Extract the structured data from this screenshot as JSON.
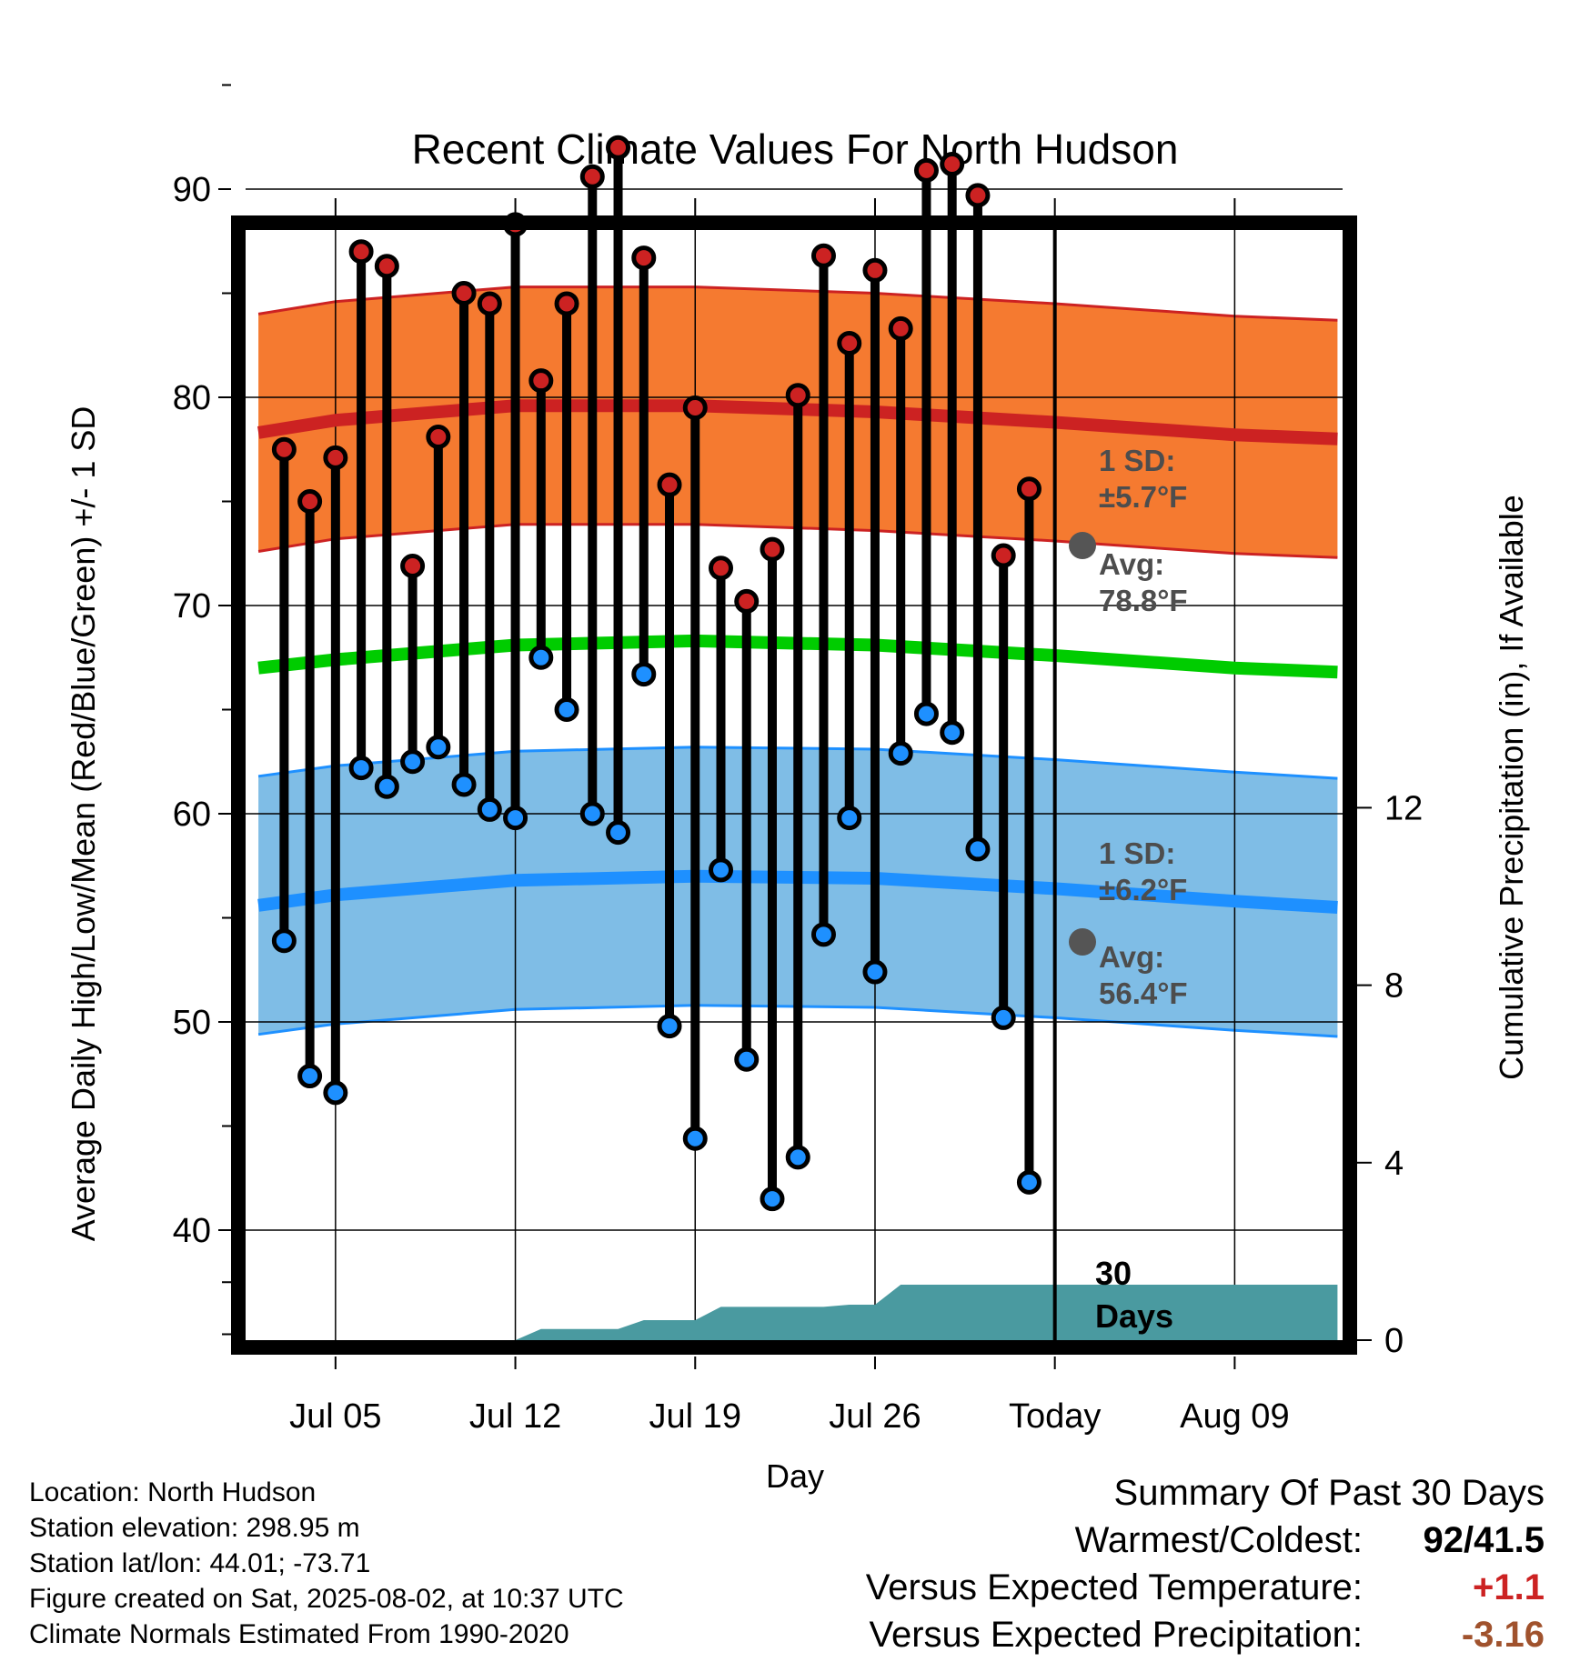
{
  "chart_data": {
    "type": "line",
    "title": "Recent Climate Values For North Hudson",
    "xlabel": "Day",
    "ylabel": "Average Daily High/Low/Mean (Red/Blue/Green) +/- 1 SD",
    "y2label": "Cumulative Precipitation (in), If Available",
    "ylim": [
      34,
      96
    ],
    "y2lim": [
      0,
      28
    ],
    "yticks": [
      "40",
      "50",
      "60",
      "70",
      "80",
      "90"
    ],
    "y2ticks": [
      "0",
      "4",
      "8",
      "12"
    ],
    "xtick_labels": [
      "Jul 05",
      "Jul 12",
      "Jul 19",
      "Jul 26",
      "Today",
      "Aug 09"
    ],
    "x_dates": [
      "Jul 03",
      "Jul 04",
      "Jul 05",
      "Jul 06",
      "Jul 07",
      "Jul 08",
      "Jul 09",
      "Jul 10",
      "Jul 11",
      "Jul 12",
      "Jul 13",
      "Jul 14",
      "Jul 15",
      "Jul 16",
      "Jul 17",
      "Jul 18",
      "Jul 19",
      "Jul 20",
      "Jul 21",
      "Jul 22",
      "Jul 23",
      "Jul 24",
      "Jul 25",
      "Jul 26",
      "Jul 27",
      "Jul 28",
      "Jul 29",
      "Jul 30",
      "Jul 31",
      "Aug 01"
    ],
    "series": [
      {
        "name": "High",
        "color": "#cc2222",
        "values": [
          77.5,
          75.0,
          77.1,
          87.0,
          86.3,
          71.9,
          78.1,
          85.0,
          84.5,
          88.3,
          80.8,
          84.5,
          90.6,
          92.0,
          86.7,
          75.8,
          79.5,
          71.8,
          70.2,
          72.7,
          80.1,
          86.8,
          82.6,
          86.1,
          83.3,
          90.9,
          91.2,
          89.7,
          72.4,
          75.6
        ]
      },
      {
        "name": "Low",
        "color": "#1e90ff",
        "values": [
          53.9,
          47.4,
          46.6,
          62.2,
          61.3,
          62.5,
          63.2,
          61.4,
          60.2,
          59.8,
          67.5,
          65.0,
          60.0,
          59.1,
          66.7,
          49.8,
          44.4,
          57.3,
          48.2,
          41.5,
          43.5,
          54.2,
          59.8,
          52.4,
          62.9,
          64.8,
          63.9,
          58.3,
          50.2,
          42.3
        ]
      }
    ],
    "normals": {
      "x_dates": [
        "Jul 02",
        "Jul 05",
        "Jul 12",
        "Jul 19",
        "Jul 26",
        "Today",
        "Aug 09",
        "Aug 13"
      ],
      "high_avg": [
        78.3,
        78.9,
        79.6,
        79.6,
        79.3,
        78.8,
        78.2,
        78.0
      ],
      "low_avg": [
        55.6,
        56.1,
        56.8,
        57.0,
        56.9,
        56.4,
        55.8,
        55.5
      ],
      "mean_avg": [
        67.0,
        67.4,
        68.1,
        68.3,
        68.1,
        67.6,
        67.0,
        66.8
      ],
      "high_sd": 5.7,
      "low_sd": 6.2,
      "high_color": "#cc2222",
      "high_band_color": "#f57a30",
      "low_color": "#1e90ff",
      "low_band_color": "#7fbde6",
      "mean_color": "#00cc00"
    },
    "precip": {
      "color": "#4a9aa0",
      "x_dates": [
        "Jul 02",
        "Jul 12",
        "Jul 13",
        "Jul 16",
        "Jul 17",
        "Jul 19",
        "Jul 20",
        "Jul 24",
        "Jul 25",
        "Jul 26",
        "Jul 27",
        "Aug 13"
      ],
      "cumulative": [
        0.0,
        0.0,
        0.25,
        0.25,
        0.45,
        0.45,
        0.75,
        0.75,
        0.8,
        0.8,
        1.25,
        1.25
      ]
    },
    "annotations": {
      "high_sd_line1": "1 SD:",
      "high_sd_line2": "±5.7°F",
      "high_avg_line1": "Avg:",
      "high_avg_line2": "78.8°F",
      "low_sd_line1": "1 SD:",
      "low_sd_line2": "±6.2°F",
      "low_avg_line1": "Avg:",
      "low_avg_line2": "56.4°F",
      "days_line1": "30",
      "days_line2": "Days"
    }
  },
  "footer": {
    "location": "Location: North Hudson",
    "elevation": "Station elevation: 298.95 m",
    "latlon": "Station lat/lon: 44.01; -73.71",
    "created": "Figure created on Sat, 2025-08-02, at 10:37 UTC",
    "normals": "Climate Normals Estimated From 1990-2020"
  },
  "summary": {
    "heading": "Summary Of Past 30 Days",
    "warmest_label": "Warmest/Coldest:",
    "warmest_value": "92/41.5",
    "temp_label": "Versus Expected Temperature:",
    "temp_value": "+1.1",
    "temp_color": "#cc2222",
    "precip_label": "Versus Expected Precipitation:",
    "precip_value": "-3.16",
    "precip_color": "#a0522d"
  }
}
